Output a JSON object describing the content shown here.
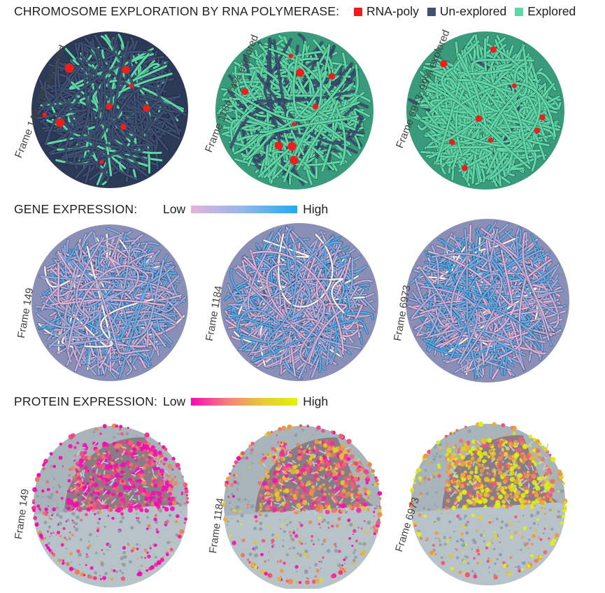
{
  "row1": {
    "title": "CHROMOSOME EXPLORATION BY RNA POLYMERASE:",
    "legend": [
      {
        "label": "RNA-poly",
        "color": "#e8201e"
      },
      {
        "label": "Un-explored",
        "color": "#3f5075"
      },
      {
        "label": "Explored",
        "color": "#5fd7a9"
      }
    ],
    "panels": [
      {
        "label": "Frame 149: 18% explored",
        "explored_fraction": 0.18
      },
      {
        "label": "Frame 1184: 74% explored",
        "explored_fraction": 0.74
      },
      {
        "label": "Frame 6973: 99% explored",
        "explored_fraction": 0.99
      }
    ]
  },
  "row2": {
    "title": "GENE EXPRESSION:",
    "low_label": "Low",
    "high_label": "High",
    "colors": {
      "low": "#e6b3dd",
      "high": "#22aaf2"
    },
    "panels": [
      {
        "label": "Frame 149"
      },
      {
        "label": "Frame 1184"
      },
      {
        "label": "Frame 6973"
      }
    ]
  },
  "row3": {
    "title": "PROTEIN EXPRESSION:",
    "low_label": "Low",
    "high_label": "High",
    "colors": {
      "low": "#f50bb4",
      "high": "#e0f20c"
    },
    "panels": [
      {
        "label": "Frame 149"
      },
      {
        "label": "Frame 1184"
      },
      {
        "label": "Frame 6973"
      }
    ]
  }
}
